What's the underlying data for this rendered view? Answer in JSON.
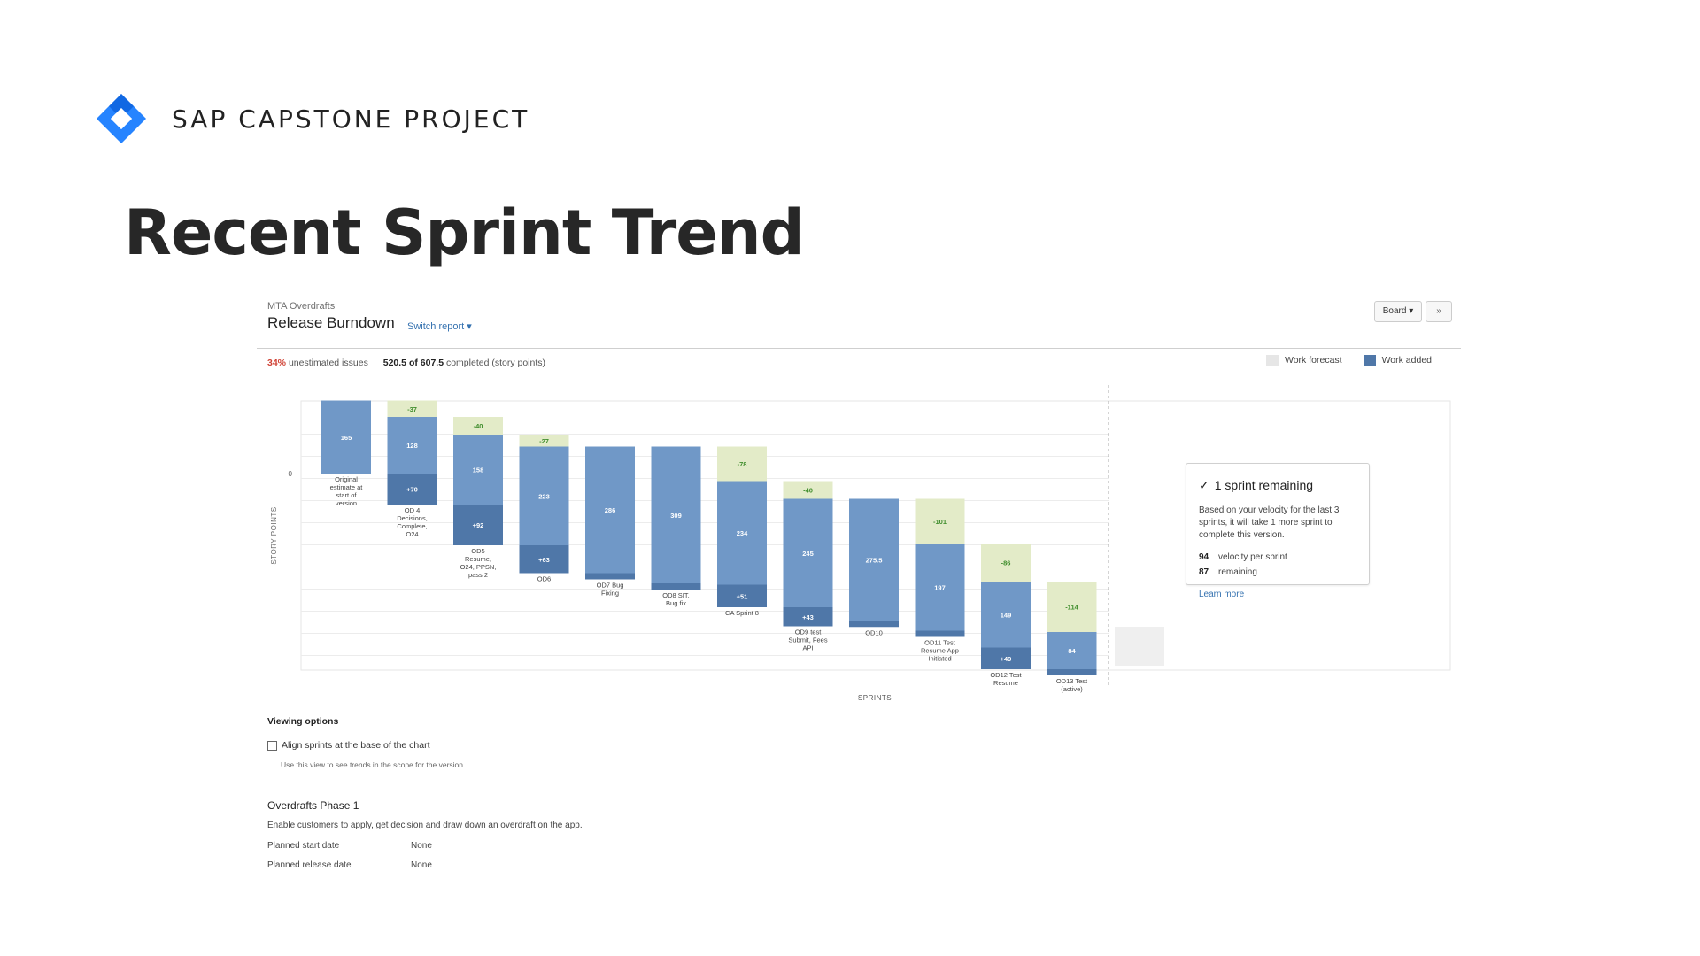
{
  "slide": {
    "brand": "SAP CAPSTONE PROJECT",
    "title": "Recent Sprint Trend"
  },
  "report": {
    "project": "MTA Overdrafts",
    "title": "Release Burndown",
    "switch_report": "Switch report ▾",
    "board_button": "Board ▾",
    "collapse_button": "»",
    "unestimated_pct": "34%",
    "unestimated_label": "unestimated issues",
    "completed": "520.5 of 607.5",
    "completed_label": "completed (story points)",
    "legend": {
      "forecast": "Work forecast",
      "added": "Work added"
    },
    "forecast_box": {
      "title": "1 sprint remaining",
      "description": "Based on your velocity for the last 3 sprints, it will take 1 more sprint to complete this version.",
      "velocity_value": "94",
      "velocity_label": "velocity per sprint",
      "remaining_value": "87",
      "remaining_label": "remaining",
      "link": "Learn more"
    },
    "viewing_options": "Viewing options",
    "align_option": "Align sprints at the base of the chart",
    "align_hint": "Use this view to see trends in the scope for the version.",
    "version": {
      "name": "Overdrafts Phase 1",
      "description": "Enable customers to apply, get decision and draw down an overdraft on the app.",
      "start_label": "Planned start date",
      "start_value": "None",
      "release_label": "Planned release date",
      "release_value": "None"
    }
  },
  "colors": {
    "remaining": "#7098c7",
    "added": "#4f77a8",
    "completed": "#e3ebc8",
    "completed_text": "#3d8c2a",
    "accent_link": "#3572b0",
    "brand_blue": "#2684ff"
  },
  "chart_data": {
    "type": "bar",
    "subtype": "release-burndown-waterfall",
    "title": "Release Burndown",
    "xlabel": "SPRINTS",
    "ylabel": "STORY POINTS",
    "zero_label": "0",
    "grid": true,
    "legend_position": "top-right",
    "sprints": [
      {
        "name": "Original estimate at start of version",
        "label": [
          "Original",
          "estimate at",
          "start of",
          "version"
        ],
        "completed": null,
        "remaining": 165,
        "added": null
      },
      {
        "name": "OD 4 Decisions, Complete, O24",
        "label": [
          "OD 4",
          "Decisions,",
          "Complete,",
          "O24"
        ],
        "completed": -37,
        "remaining": 128,
        "added": 70
      },
      {
        "name": "OD5 Resume, O24, PPSN, pass 2",
        "label": [
          "OD5",
          "Resume,",
          "O24, PPSN,",
          "pass 2"
        ],
        "completed": -40,
        "remaining": 158,
        "added": 92
      },
      {
        "name": "OD6",
        "label": [
          "OD6"
        ],
        "completed": -27,
        "remaining": 223,
        "added": 63
      },
      {
        "name": "OD7 Bug Fixing",
        "label": [
          "OD7 Bug",
          "Fixing"
        ],
        "completed": null,
        "remaining": 286,
        "added": null
      },
      {
        "name": "OD8 SIT, Bug fix",
        "label": [
          "OD8 SIT,",
          "Bug fix"
        ],
        "completed": null,
        "remaining": 309,
        "added": null
      },
      {
        "name": "CA Sprint 8",
        "label": [
          "CA Sprint 8"
        ],
        "completed": -78,
        "remaining": 234,
        "added": 51
      },
      {
        "name": "OD9 test Submit, Fees API",
        "label": [
          "OD9 test",
          "Submit, Fees",
          "API"
        ],
        "completed": -40,
        "remaining": 245,
        "added": 43
      },
      {
        "name": "OD10",
        "label": [
          "OD10"
        ],
        "completed": null,
        "remaining": 275.5,
        "added": null
      },
      {
        "name": "OD11 Test Resume App Initiated",
        "label": [
          "OD11 Test",
          "Resume App",
          "Initiated"
        ],
        "completed": -101,
        "remaining": 197,
        "added": null
      },
      {
        "name": "OD12 Test Resume",
        "label": [
          "OD12 Test",
          "Resume"
        ],
        "completed": -86,
        "remaining": 149,
        "added": 49
      },
      {
        "name": "OD13 Test (active)",
        "label": [
          "OD13 Test",
          "(active)"
        ],
        "completed": -114,
        "remaining": 84,
        "added": null
      }
    ]
  }
}
